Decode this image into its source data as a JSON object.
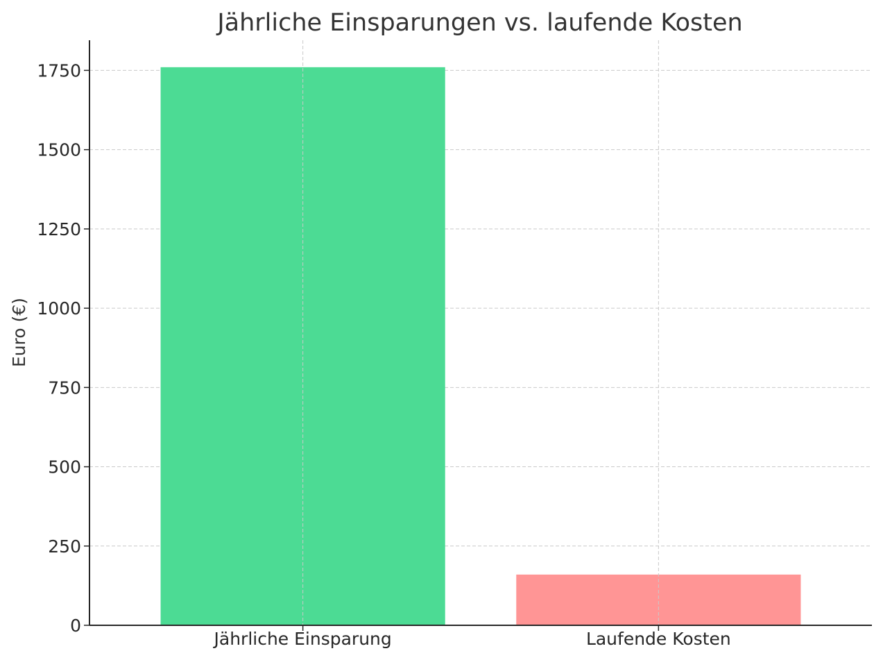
{
  "chart_data": {
    "type": "bar",
    "title": "Jährliche Einsparungen vs. laufende Kosten",
    "xlabel": "",
    "ylabel": "Euro (€)",
    "categories": [
      "Jährliche Einsparung",
      "Laufende Kosten"
    ],
    "values": [
      1760,
      160
    ],
    "colors": [
      "#4cdb94",
      "#ff9595"
    ],
    "ylim": [
      0,
      1845
    ],
    "yticks": [
      0,
      250,
      500,
      750,
      1000,
      1250,
      1500,
      1750
    ],
    "grid": true,
    "legend": "none"
  }
}
